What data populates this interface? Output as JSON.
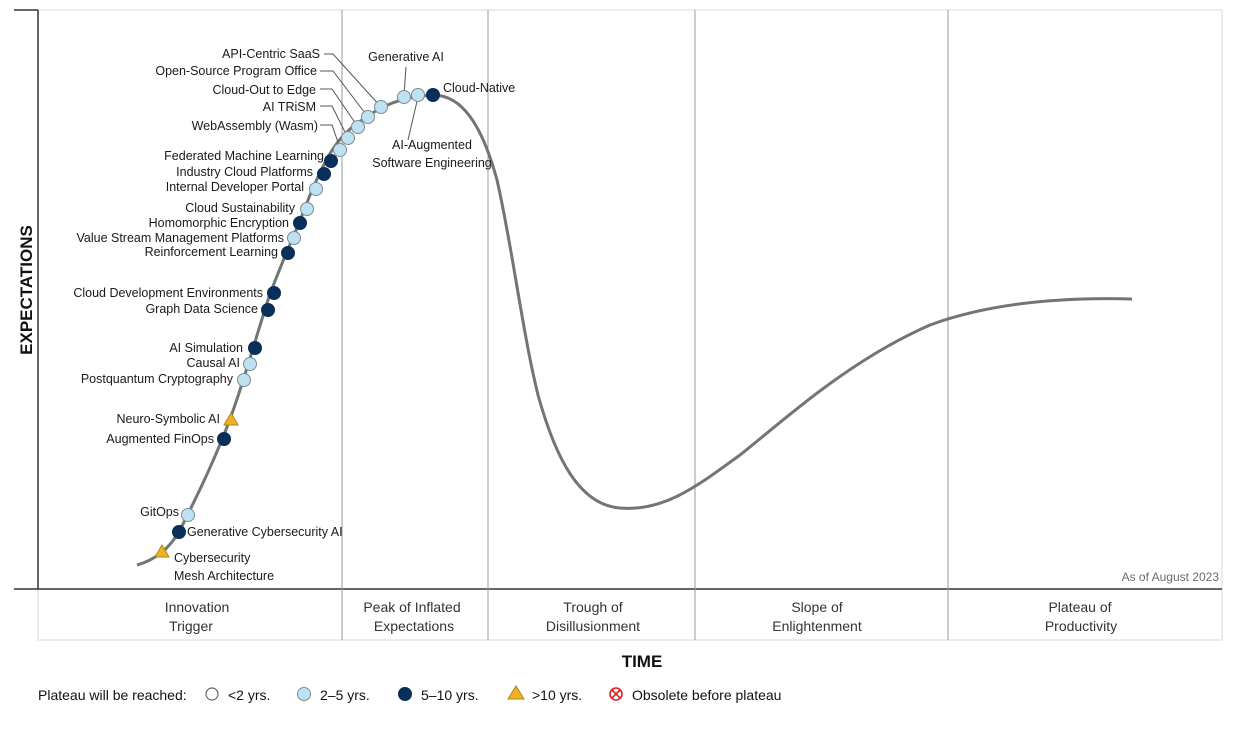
{
  "chart_data": {
    "type": "scatter",
    "subtype": "hype-cycle",
    "ylabel": "EXPECTATIONS",
    "xlabel": "TIME",
    "note": "As of August 2023",
    "phases": [
      {
        "line1": "Innovation",
        "line2": "Trigger"
      },
      {
        "line1": "Peak of Inflated",
        "line2": "Expectations"
      },
      {
        "line1": "Trough of",
        "line2": "Disillusionment"
      },
      {
        "line1": "Slope of",
        "line2": "Enlightenment"
      },
      {
        "line1": "Plateau of",
        "line2": "Productivity"
      }
    ],
    "legend": {
      "title": "Plateau will be reached:",
      "items": [
        {
          "key": "lt2",
          "label": "<2 yrs."
        },
        {
          "key": "2to5",
          "label": "2–5 yrs."
        },
        {
          "key": "5to10",
          "label": "5–10 yrs."
        },
        {
          "key": "gt10",
          "label": ">10 yrs."
        },
        {
          "key": "obsolete",
          "label": "Obsolete before plateau"
        }
      ]
    },
    "colors": {
      "2to5": "#bfe2f2",
      "5to10": "#0b2f5b",
      "gt10": "#f0b320",
      "obsolete": "#e02020",
      "curve": "#6f7773",
      "grid": "#9a9a9a"
    },
    "series": [
      {
        "name": "Cybersecurity Mesh Architecture",
        "lines": [
          "Cybersecurity",
          "Mesh Architecture"
        ],
        "cat": "gt10"
      },
      {
        "name": "Generative Cybersecurity AI",
        "cat": "5to10"
      },
      {
        "name": "GitOps",
        "cat": "2to5"
      },
      {
        "name": "Augmented FinOps",
        "cat": "5to10"
      },
      {
        "name": "Neuro-Symbolic AI",
        "cat": "gt10"
      },
      {
        "name": "Postquantum Cryptography",
        "cat": "2to5"
      },
      {
        "name": "Causal AI",
        "cat": "2to5"
      },
      {
        "name": "AI Simulation",
        "cat": "5to10"
      },
      {
        "name": "Graph Data Science",
        "cat": "5to10"
      },
      {
        "name": "Cloud Development Environments",
        "cat": "5to10"
      },
      {
        "name": "Reinforcement Learning",
        "cat": "5to10"
      },
      {
        "name": "Value Stream Management Platforms",
        "cat": "2to5"
      },
      {
        "name": "Homomorphic Encryption",
        "cat": "5to10"
      },
      {
        "name": "Cloud Sustainability",
        "cat": "2to5"
      },
      {
        "name": "Internal Developer Portal",
        "cat": "2to5"
      },
      {
        "name": "Industry Cloud Platforms",
        "cat": "5to10"
      },
      {
        "name": "Federated Machine Learning",
        "cat": "5to10"
      },
      {
        "name": "WebAssembly (Wasm)",
        "cat": "2to5"
      },
      {
        "name": "AI TRiSM",
        "cat": "2to5"
      },
      {
        "name": "Cloud-Out to Edge",
        "cat": "2to5"
      },
      {
        "name": "Open-Source Program Office",
        "cat": "2to5"
      },
      {
        "name": "API-Centric SaaS",
        "cat": "2to5"
      },
      {
        "name": "Generative AI",
        "cat": "2to5"
      },
      {
        "name": "AI-Augmented Software Engineering",
        "lines": [
          "AI-Augmented",
          "Software Engineering"
        ],
        "cat": "2to5"
      },
      {
        "name": "Cloud-Native",
        "cat": "5to10"
      }
    ]
  }
}
